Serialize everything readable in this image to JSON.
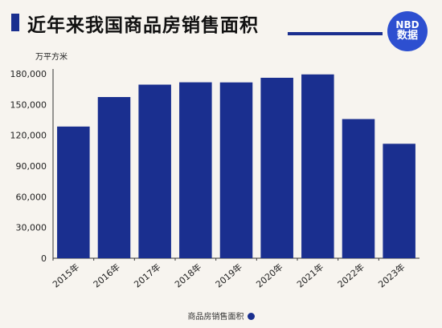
{
  "header": {
    "title": "近年来我国商品房销售面积",
    "logo_line1": "NBD",
    "logo_line2": "数据"
  },
  "chart_data": {
    "type": "bar",
    "title": "近年来我国商品房销售面积",
    "ylabel": "万平方米",
    "xlabel": "",
    "categories": [
      "2015年",
      "2016年",
      "2017年",
      "2018年",
      "2019年",
      "2020年",
      "2021年",
      "2022年",
      "2023年"
    ],
    "series": [
      {
        "name": "商品房销售面积",
        "values": [
          128500,
          157300,
          169400,
          171700,
          171600,
          176100,
          179400,
          135800,
          111700
        ]
      }
    ],
    "yticks": [
      "0",
      "30,000",
      "60,000",
      "90,000",
      "120,000",
      "150,000",
      "180,000"
    ],
    "ylim": [
      0,
      180000
    ],
    "grid": false,
    "legend_position": "bottom",
    "bar_color": "#1a2f8f"
  }
}
